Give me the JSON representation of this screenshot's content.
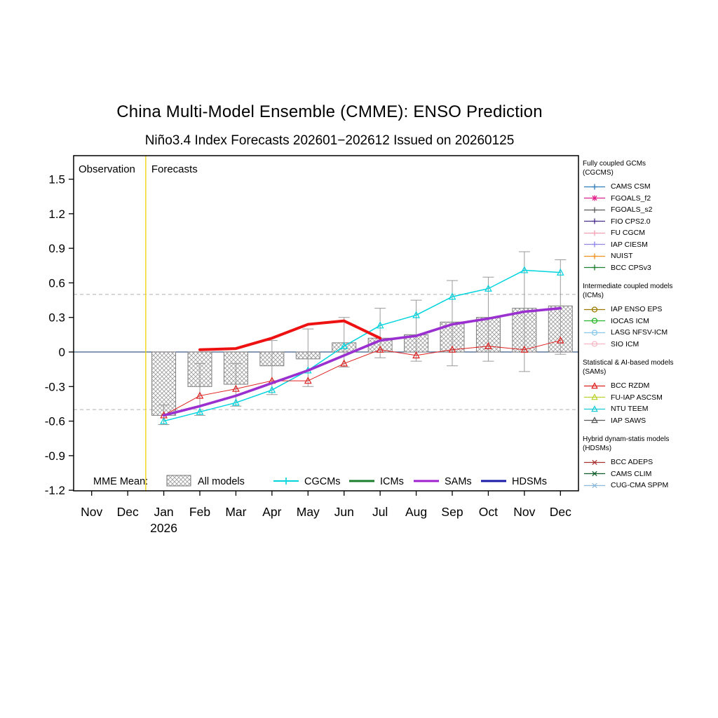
{
  "chart_data": {
    "type": "bar+line",
    "title": "China Multi-Model Ensemble (CMME): ENSO Prediction",
    "subtitle": "Niño3.4 Index Forecasts 202601−202612 Issued on 20260125",
    "categories": [
      "Nov",
      "Dec",
      "Jan",
      "Feb",
      "Mar",
      "Apr",
      "May",
      "Jun",
      "Jul",
      "Aug",
      "Sep",
      "Oct",
      "Nov",
      "Dec"
    ],
    "year_label": "2026",
    "year_label_index": 2,
    "forecast_start_index": 2,
    "ylim": [
      -1.2,
      1.5
    ],
    "yticks": [
      "1.5",
      "1.2",
      "0.9",
      "0.6",
      "0.3",
      "0",
      "-0.3",
      "-0.6",
      "-0.9",
      "-1.2"
    ],
    "threshold_lines": [
      0.5,
      -0.5
    ],
    "zero_line": 0,
    "region_labels": {
      "observation": "Observation",
      "forecasts": "Forecasts"
    },
    "bars": {
      "name": "All models (MME mean)",
      "start_index": 2,
      "values": [
        -0.55,
        -0.3,
        -0.28,
        -0.12,
        -0.06,
        0.08,
        0.12,
        0.15,
        0.26,
        0.3,
        0.38,
        0.4
      ],
      "err_low": [
        -0.63,
        -0.55,
        -0.47,
        -0.37,
        -0.3,
        -0.13,
        -0.05,
        -0.08,
        -0.12,
        -0.08,
        -0.17,
        -0.02
      ],
      "err_high": [
        -0.46,
        -0.1,
        -0.1,
        0.1,
        0.2,
        0.3,
        0.38,
        0.45,
        0.62,
        0.65,
        0.87,
        0.8
      ]
    },
    "series": [
      {
        "name": "CGCMs mean",
        "color": "#00d4de",
        "width": 1.5,
        "marker": "triangle",
        "start_index": 2,
        "values": [
          -0.6,
          -0.52,
          -0.44,
          -0.33,
          -0.16,
          0.05,
          0.23,
          0.32,
          0.48,
          0.55,
          0.71,
          0.69
        ]
      },
      {
        "name": "BCC RZDM",
        "color": "#e02020",
        "width": 1,
        "marker": "triangle",
        "start_index": 2,
        "values": [
          -0.55,
          -0.38,
          -0.32,
          -0.25,
          -0.25,
          -0.1,
          0.02,
          -0.03,
          0.02,
          0.05,
          0.02,
          0.1
        ]
      },
      {
        "name": "SAMs mean",
        "color": "#9b30d0",
        "width": 3.6,
        "marker": "none",
        "start_index": 2,
        "values": [
          -0.55,
          -0.47,
          -0.38,
          -0.27,
          -0.16,
          -0.03,
          0.1,
          0.14,
          0.24,
          0.29,
          0.35,
          0.38
        ]
      },
      {
        "name": "ICMs mean",
        "color": "#ee1111",
        "width": 4,
        "marker": "none",
        "start_index": 3,
        "values": [
          0.02,
          0.03,
          0.12,
          0.24,
          0.27,
          0.12
        ]
      }
    ]
  },
  "bottom_legend": {
    "title": "MME Mean:",
    "items": [
      {
        "label": "All models",
        "swatch": "hatch",
        "color": "#808080"
      },
      {
        "label": "CGCMs",
        "swatch": "line",
        "marker": "plus",
        "color": "#00d4de"
      },
      {
        "label": "ICMs",
        "swatch": "line",
        "marker": "none",
        "color": "#1b7f2e"
      },
      {
        "label": "SAMs",
        "swatch": "line",
        "marker": "none",
        "color": "#a020d0"
      },
      {
        "label": "HDSMs",
        "swatch": "line",
        "marker": "none",
        "color": "#1a1aa8"
      }
    ]
  },
  "legend_groups": [
    {
      "header": "Fully coupled GCMs",
      "header2": "(CGCMS)",
      "items": [
        {
          "label": "CAMS CSM",
          "color": "#2e7ebc",
          "marker": "plus"
        },
        {
          "label": "FGOALS_f2",
          "color": "#e0218a",
          "marker": "star"
        },
        {
          "label": "FGOALS_s2",
          "color": "#5a5a5a",
          "marker": "plus"
        },
        {
          "label": "FIO CPS2.0",
          "color": "#4a2e8e",
          "marker": "plus"
        },
        {
          "label": "FU CGCM",
          "color": "#f2a0b4",
          "marker": "plus"
        },
        {
          "label": "IAP CIESM",
          "color": "#8f86e8",
          "marker": "plus"
        },
        {
          "label": "NUIST",
          "color": "#f0901e",
          "marker": "plus"
        },
        {
          "label": "BCC CPSv3",
          "color": "#1b7f2e",
          "marker": "plus"
        }
      ]
    },
    {
      "header": "Intermediate coupled models",
      "header2": "(ICMs)",
      "items": [
        {
          "label": "IAP ENSO EPS",
          "color": "#9c7a00",
          "marker": "circle"
        },
        {
          "label": "IOCAS ICM",
          "color": "#28b428",
          "marker": "circle"
        },
        {
          "label": "LASG NFSV-ICM",
          "color": "#86c8ea",
          "marker": "circle"
        },
        {
          "label": "SIO ICM",
          "color": "#f6b8c4",
          "marker": "circle"
        }
      ]
    },
    {
      "header": "Statistical & AI-based models",
      "header2": "(SAMs)",
      "items": [
        {
          "label": "BCC RZDM",
          "color": "#e02020",
          "marker": "triangle"
        },
        {
          "label": "FU-IAP ASCSM",
          "color": "#bcd22e",
          "marker": "triangle"
        },
        {
          "label": "NTU TEEM",
          "color": "#18cad6",
          "marker": "triangle"
        },
        {
          "label": "IAP SAWS",
          "color": "#5a5a5a",
          "marker": "triangle"
        }
      ]
    },
    {
      "header": "Hybrid dynam-statis models",
      "header2": "(HDSMs)",
      "items": [
        {
          "label": "BCC ADEPS",
          "color": "#a83232",
          "marker": "x"
        },
        {
          "label": "CAMS CLIM",
          "color": "#0c5c28",
          "marker": "x"
        },
        {
          "label": "CUG-CMA SPPM",
          "color": "#8cb8dc",
          "marker": "x"
        }
      ]
    }
  ]
}
